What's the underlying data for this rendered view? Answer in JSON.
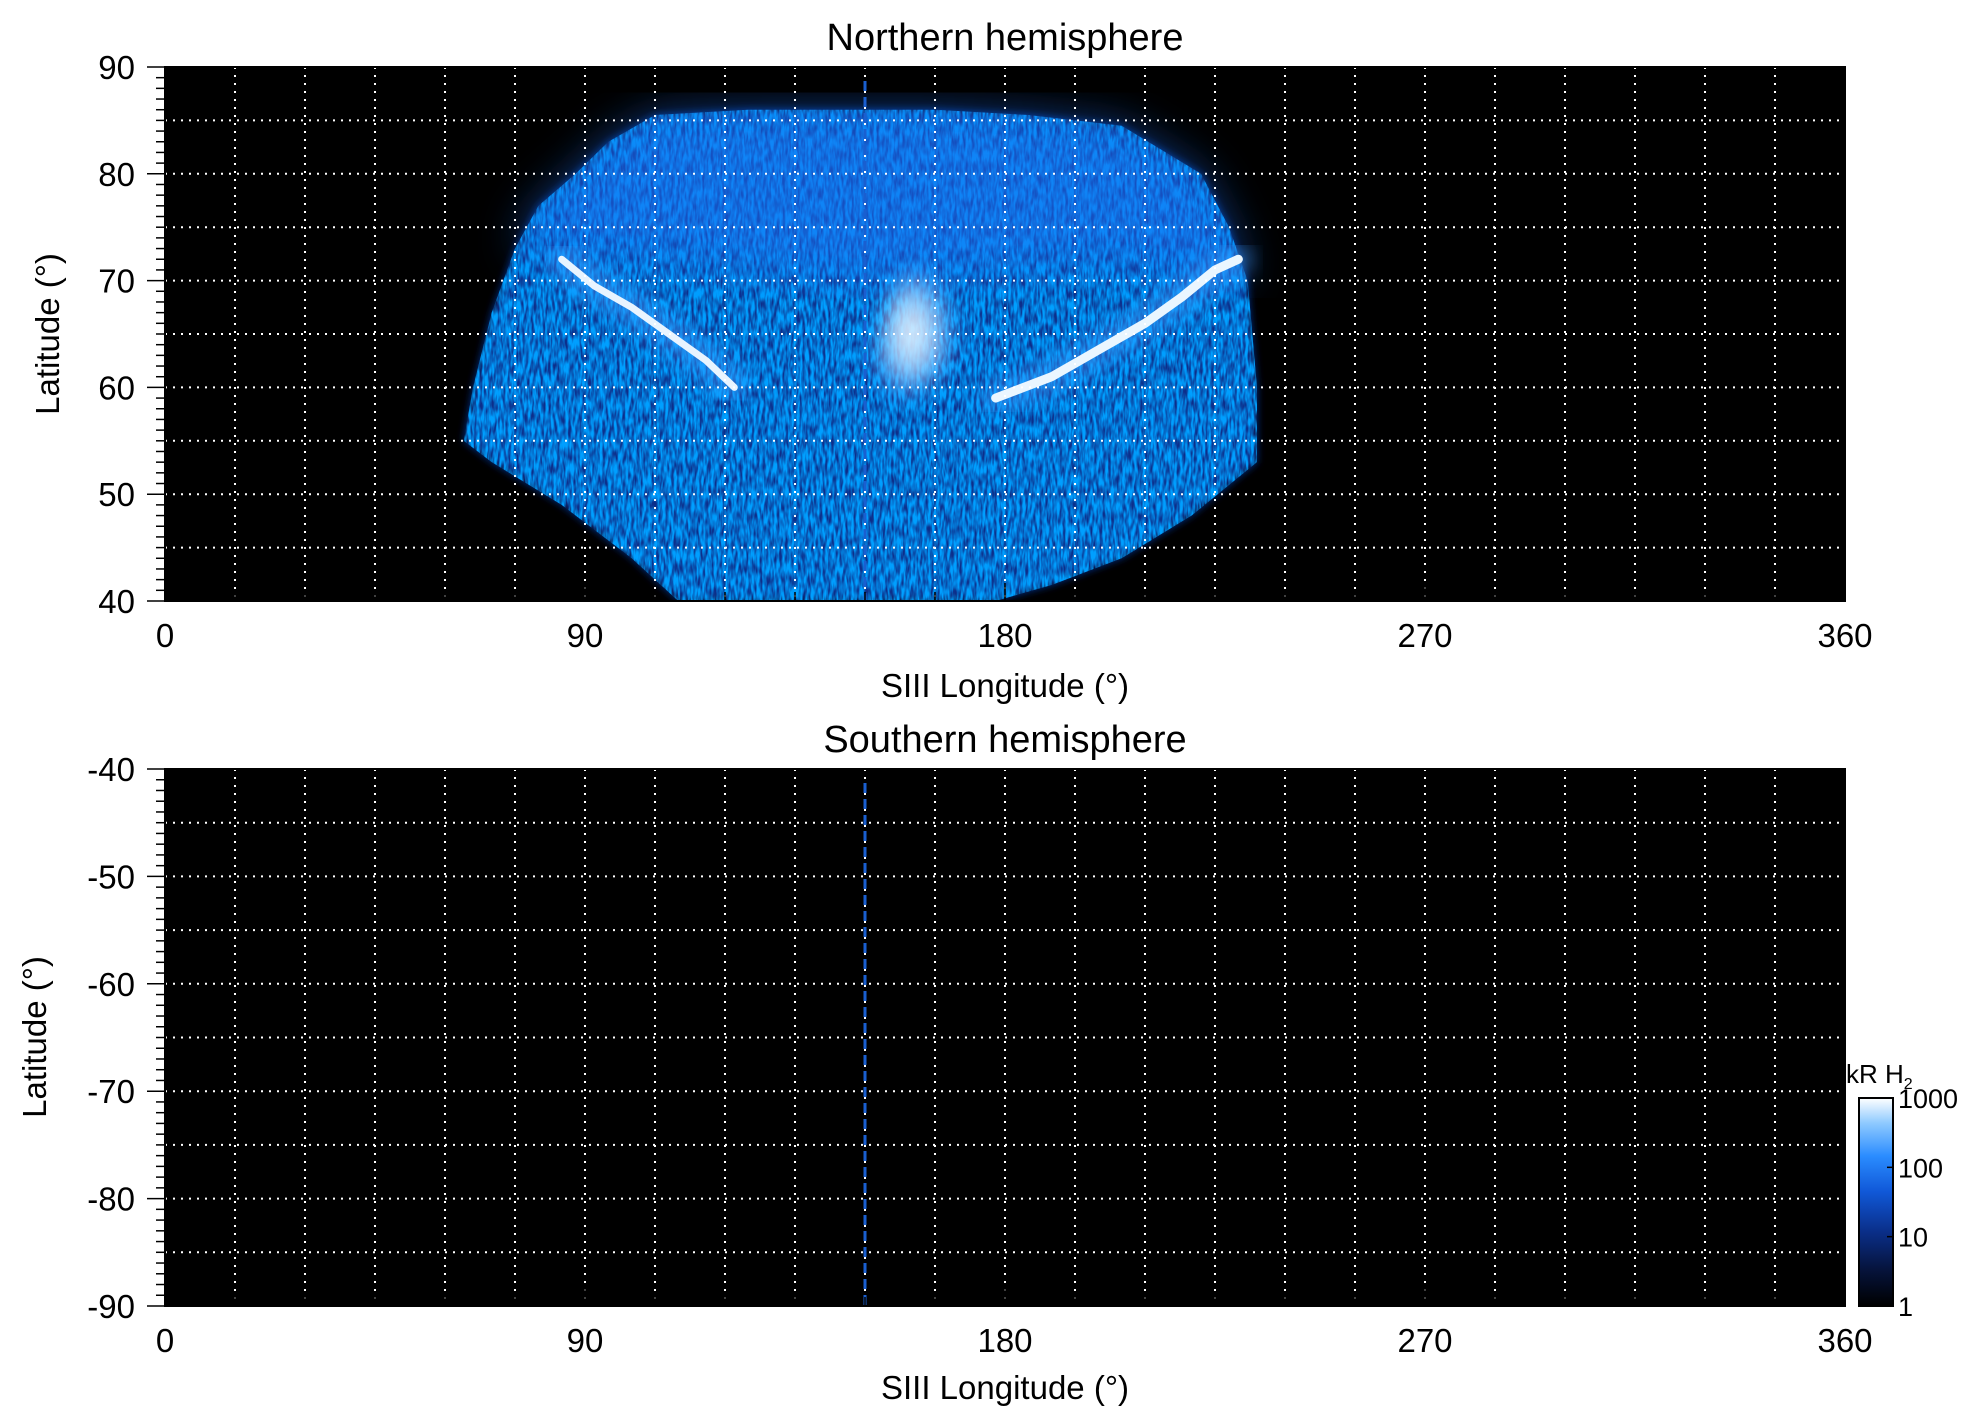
{
  "colors": {
    "background": "#000000",
    "grid": "#ffffff",
    "noon_line": "#1a5fd0",
    "colormap": [
      "#000000",
      "#06143e",
      "#0a2f8a",
      "#1058d8",
      "#2a8cff",
      "#8fcaff",
      "#ffffff"
    ]
  },
  "chart_data": [
    {
      "type": "heatmap",
      "name": "north",
      "title": "Northern hemisphere",
      "xlabel": "SIII Longitude (°)",
      "ylabel": "Latitude (°)",
      "xlim": [
        0,
        360
      ],
      "ylim": [
        40,
        90
      ],
      "xticks": [
        "0",
        "90",
        "180",
        "270",
        "360"
      ],
      "yticks": [
        "40",
        "50",
        "60",
        "70",
        "80",
        "90"
      ],
      "grid": true,
      "vertical_line_longitude": 150,
      "emission": {
        "coverage_polygon": [
          [
            64,
            55
          ],
          [
            66,
            60
          ],
          [
            70,
            67
          ],
          [
            75,
            73
          ],
          [
            80,
            77
          ],
          [
            88,
            80
          ],
          [
            95,
            83
          ],
          [
            105,
            85.5
          ],
          [
            125,
            86
          ],
          [
            145,
            86
          ],
          [
            165,
            86
          ],
          [
            185,
            85.5
          ],
          [
            205,
            84.5
          ],
          [
            222,
            80
          ],
          [
            228,
            75
          ],
          [
            232,
            70
          ],
          [
            233,
            65
          ],
          [
            234,
            60
          ],
          [
            234,
            53
          ],
          [
            220,
            48
          ],
          [
            205,
            44
          ],
          [
            190,
            41.5
          ],
          [
            178,
            40
          ],
          [
            110,
            40
          ],
          [
            100,
            44
          ],
          [
            85,
            49
          ],
          [
            70,
            53
          ]
        ],
        "main_oval": [
          [
            122,
            60
          ],
          [
            116,
            62.5
          ],
          [
            108,
            65
          ],
          [
            100,
            67.5
          ],
          [
            92,
            69.5
          ],
          [
            85,
            72
          ]
        ],
        "dawn_arc": [
          [
            178,
            59
          ],
          [
            190,
            61
          ],
          [
            200,
            63.5
          ],
          [
            210,
            66
          ],
          [
            218,
            68.5
          ],
          [
            225,
            71
          ],
          [
            230,
            72
          ]
        ],
        "polar_region": [
          [
            150,
            58
          ],
          [
            160,
            59
          ],
          [
            168,
            62
          ],
          [
            170,
            66
          ],
          [
            168,
            70
          ],
          [
            160,
            72
          ],
          [
            155,
            68
          ],
          [
            152,
            62
          ]
        ],
        "units": "kR H₂"
      }
    },
    {
      "type": "heatmap",
      "name": "south",
      "title": "Southern hemisphere",
      "xlabel": "SIII Longitude (°)",
      "ylabel": "Latitude (°)",
      "xlim": [
        0,
        360
      ],
      "ylim": [
        -90,
        -40
      ],
      "xticks": [
        "0",
        "90",
        "180",
        "270",
        "360"
      ],
      "yticks": [
        "-40",
        "-50",
        "-60",
        "-70",
        "-80",
        "-90"
      ],
      "grid": true,
      "vertical_line_longitude": 150
    }
  ],
  "colorbar": {
    "label": "kR H",
    "label_subscript": "2",
    "scale": "log",
    "range": [
      1,
      1000
    ],
    "ticks": [
      "1000",
      "100",
      "10",
      "1"
    ]
  }
}
